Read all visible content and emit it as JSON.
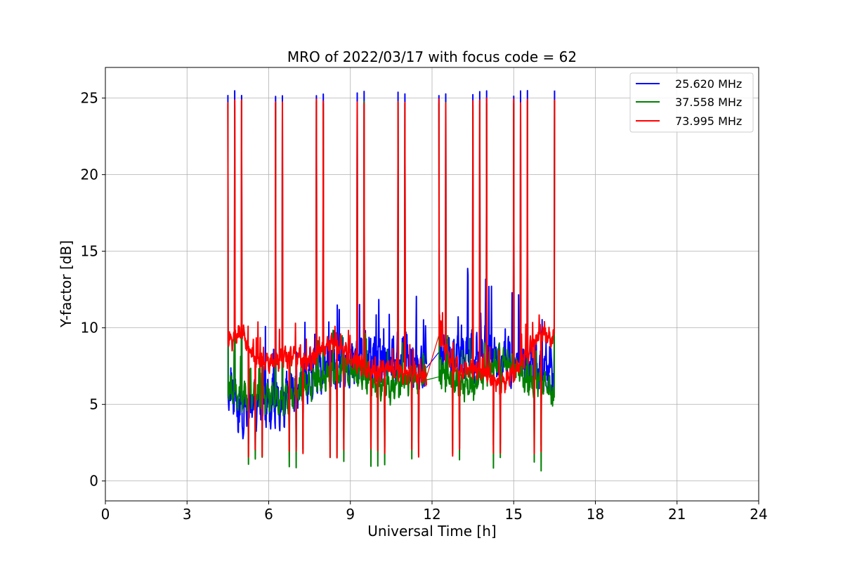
{
  "chart_data": {
    "type": "line",
    "title": "MRO of 2022/03/17 with focus code = 62",
    "xlabel": "Universal Time [h]",
    "ylabel": "Y-factor [dB]",
    "xlim": [
      0,
      24
    ],
    "ylim": [
      -1.3,
      27
    ],
    "xticks": [
      0,
      3,
      6,
      9,
      12,
      15,
      18,
      21,
      24
    ],
    "yticks": [
      0,
      5,
      10,
      15,
      20,
      25
    ],
    "grid": true,
    "legend_position": "top-right",
    "data_span": [
      4.5,
      16.5
    ],
    "gap": [
      11.8,
      12.25
    ],
    "pulse_period_h": 0.25,
    "series": [
      {
        "name": "25.620 MHz",
        "color": "#0000ff",
        "peak": 25.5,
        "baseline_x": [
          4.5,
          5.0,
          5.5,
          6.0,
          6.5,
          7.0,
          7.5,
          8.0,
          8.5,
          9.0,
          9.5,
          10.0,
          10.5,
          11.0,
          11.5,
          11.8,
          12.25,
          12.5,
          13.0,
          13.5,
          14.0,
          14.5,
          15.0,
          15.5,
          16.0,
          16.5
        ],
        "baseline_y": [
          6.2,
          4.6,
          4.8,
          5.2,
          5.0,
          6.2,
          7.0,
          7.5,
          7.8,
          7.6,
          8.2,
          8.2,
          8.0,
          8.2,
          7.5,
          7.4,
          8.4,
          8.2,
          8.4,
          8.0,
          8.6,
          8.2,
          7.6,
          7.8,
          7.5,
          7.4
        ],
        "low_range": [
          2.0,
          3.0
        ]
      },
      {
        "name": "37.558 MHz",
        "color": "#008000",
        "peak": 24.9,
        "baseline_x": [
          4.5,
          5.0,
          5.5,
          6.0,
          6.5,
          7.0,
          7.5,
          8.0,
          8.5,
          9.0,
          9.5,
          10.0,
          10.5,
          11.0,
          11.5,
          11.8,
          12.25,
          12.5,
          13.0,
          13.5,
          14.0,
          14.5,
          15.0,
          15.5,
          16.0,
          16.5
        ],
        "baseline_y": [
          6.0,
          5.5,
          5.4,
          5.4,
          5.2,
          5.8,
          6.2,
          6.8,
          7.2,
          7.2,
          6.8,
          6.2,
          6.0,
          6.5,
          6.6,
          6.6,
          6.8,
          6.8,
          6.2,
          6.0,
          7.2,
          8.0,
          7.5,
          6.5,
          6.5,
          5.5
        ],
        "low_range": [
          0.6,
          2.0
        ]
      },
      {
        "name": "73.995 MHz",
        "color": "#ff0000",
        "peak": 25.0,
        "baseline_x": [
          4.5,
          5.0,
          5.5,
          6.0,
          6.5,
          7.0,
          7.5,
          8.0,
          8.5,
          9.0,
          9.5,
          10.0,
          10.5,
          11.0,
          11.5,
          11.8,
          12.25,
          12.5,
          13.0,
          13.5,
          14.0,
          14.5,
          15.0,
          15.5,
          16.0,
          16.5
        ],
        "baseline_y": [
          9.0,
          9.7,
          8.0,
          7.7,
          8.0,
          8.2,
          7.6,
          8.6,
          9.2,
          8.0,
          7.4,
          7.0,
          7.4,
          7.0,
          7.0,
          6.8,
          9.5,
          8.4,
          7.2,
          7.4,
          7.0,
          6.2,
          7.0,
          8.2,
          9.8,
          9.2
        ],
        "low_range": [
          1.5,
          2.2
        ]
      }
    ]
  }
}
